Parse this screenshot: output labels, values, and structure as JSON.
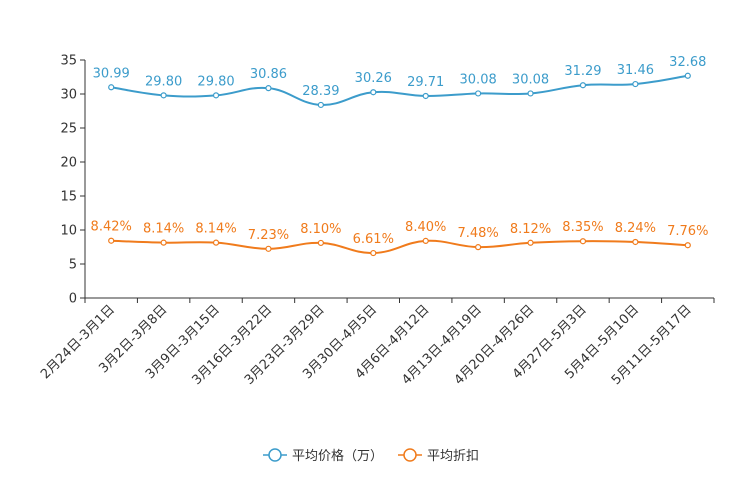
{
  "chart_data": {
    "type": "line",
    "title": "",
    "xlabel": "",
    "ylabel": "",
    "ylim": [
      0,
      35
    ],
    "yticks": [
      0,
      5,
      10,
      15,
      20,
      25,
      30,
      35
    ],
    "grid": false,
    "legend_position": "bottom-center",
    "categories": [
      "2月24日-3月1日",
      "3月2日-3月8日",
      "3月9日-3月15日",
      "3月16日-3月22日",
      "3月23日-3月29日",
      "3月30日-4月5日",
      "4月6日-4月12日",
      "4月13日-4月19日",
      "4月20日-4月26日",
      "4月27日-5月3日",
      "5月4日-5月10日",
      "5月11日-5月17日"
    ],
    "series": [
      {
        "name": "平均价格（万）",
        "color": "#3c9ccb",
        "values": [
          30.99,
          29.8,
          29.8,
          30.86,
          28.39,
          30.26,
          29.71,
          30.08,
          30.08,
          31.29,
          31.46,
          32.68
        ],
        "labels": [
          "30.99",
          "29.80",
          "29.80",
          "30.86",
          "28.39",
          "30.26",
          "29.71",
          "30.08",
          "30.08",
          "31.29",
          "31.46",
          "32.68"
        ]
      },
      {
        "name": "平均折扣",
        "color": "#f07b1c",
        "values": [
          8.42,
          8.14,
          8.14,
          7.23,
          8.1,
          6.61,
          8.4,
          7.48,
          8.12,
          8.35,
          8.24,
          7.76
        ],
        "labels": [
          "8.42%",
          "8.14%",
          "8.14%",
          "7.23%",
          "8.10%",
          "6.61%",
          "8.40%",
          "7.48%",
          "8.12%",
          "8.35%",
          "8.24%",
          "7.76%"
        ]
      }
    ]
  }
}
